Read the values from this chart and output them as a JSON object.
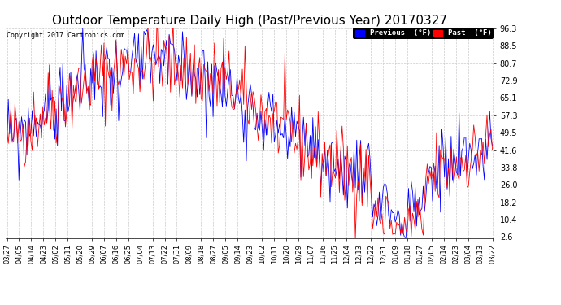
{
  "title": "Outdoor Temperature Daily High (Past/Previous Year) 20170327",
  "copyright": "Copyright 2017 Cartronics.com",
  "ylabel_ticks": [
    2.6,
    10.4,
    18.2,
    26.0,
    33.8,
    41.6,
    49.5,
    57.3,
    65.1,
    72.9,
    80.7,
    88.5,
    96.3
  ],
  "xlabels": [
    "03/27",
    "04/05",
    "04/14",
    "04/23",
    "05/02",
    "05/11",
    "05/20",
    "05/29",
    "06/07",
    "06/16",
    "06/25",
    "07/04",
    "07/13",
    "07/22",
    "07/31",
    "08/09",
    "08/18",
    "08/27",
    "09/05",
    "09/14",
    "09/23",
    "10/02",
    "10/11",
    "10/20",
    "10/29",
    "11/07",
    "11/16",
    "11/25",
    "12/04",
    "12/13",
    "12/22",
    "12/31",
    "01/09",
    "01/18",
    "01/27",
    "02/05",
    "02/14",
    "02/23",
    "03/04",
    "03/13",
    "03/22"
  ],
  "past_color": "#ff0000",
  "previous_color": "#0000ff",
  "background_color": "#ffffff",
  "grid_color": "#aaaaaa",
  "title_fontsize": 11,
  "legend_past_label": "Past  (°F)",
  "legend_previous_label": "Previous  (°F)"
}
